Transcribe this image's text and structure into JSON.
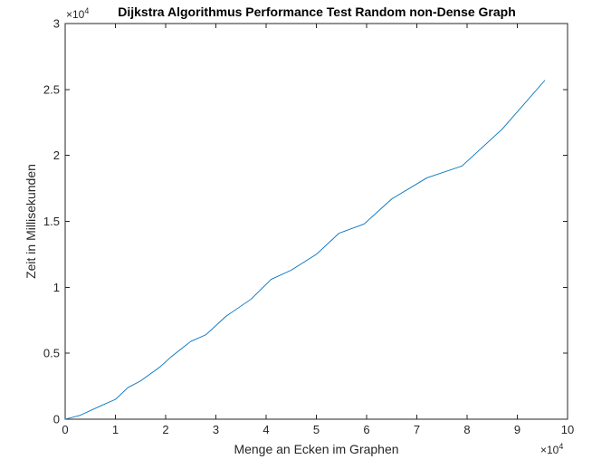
{
  "chart_data": {
    "type": "line",
    "title": "Dijkstra Algorithmus Performance Test Random non-Dense Graph",
    "xlabel": "Menge an Ecken im Graphen",
    "ylabel": "Zeit in Millisekunden",
    "x_exponent_base": "×10",
    "x_exponent_power": "4",
    "y_exponent_base": "×10",
    "y_exponent_power": "4",
    "xlim": [
      0,
      10
    ],
    "ylim": [
      0,
      3
    ],
    "x_ticks": [
      0,
      1,
      2,
      3,
      4,
      5,
      6,
      7,
      8,
      9,
      10
    ],
    "y_ticks": [
      0,
      0.5,
      1,
      1.5,
      2,
      2.5,
      3
    ],
    "x_tick_labels": [
      "0",
      "1",
      "2",
      "3",
      "4",
      "5",
      "6",
      "7",
      "8",
      "9",
      "10"
    ],
    "y_tick_labels": [
      "0",
      "0.5",
      "1",
      "1.5",
      "2",
      "2.5",
      "3"
    ],
    "grid": false,
    "box": true,
    "line_color": "#0072BD",
    "series": [
      {
        "x": [
          0,
          0.3,
          0.7,
          1.0,
          1.25,
          1.5,
          1.9,
          2.1,
          2.5,
          2.8,
          3.2,
          3.7,
          4.1,
          4.5,
          5.0,
          5.45,
          5.95,
          6.5,
          7.2,
          7.9,
          8.7,
          9.55
        ],
        "y": [
          0,
          0.03,
          0.1,
          0.15,
          0.24,
          0.29,
          0.4,
          0.47,
          0.59,
          0.64,
          0.78,
          0.91,
          1.06,
          1.13,
          1.25,
          1.41,
          1.48,
          1.67,
          1.83,
          1.92,
          2.2,
          2.57
        ]
      }
    ]
  }
}
